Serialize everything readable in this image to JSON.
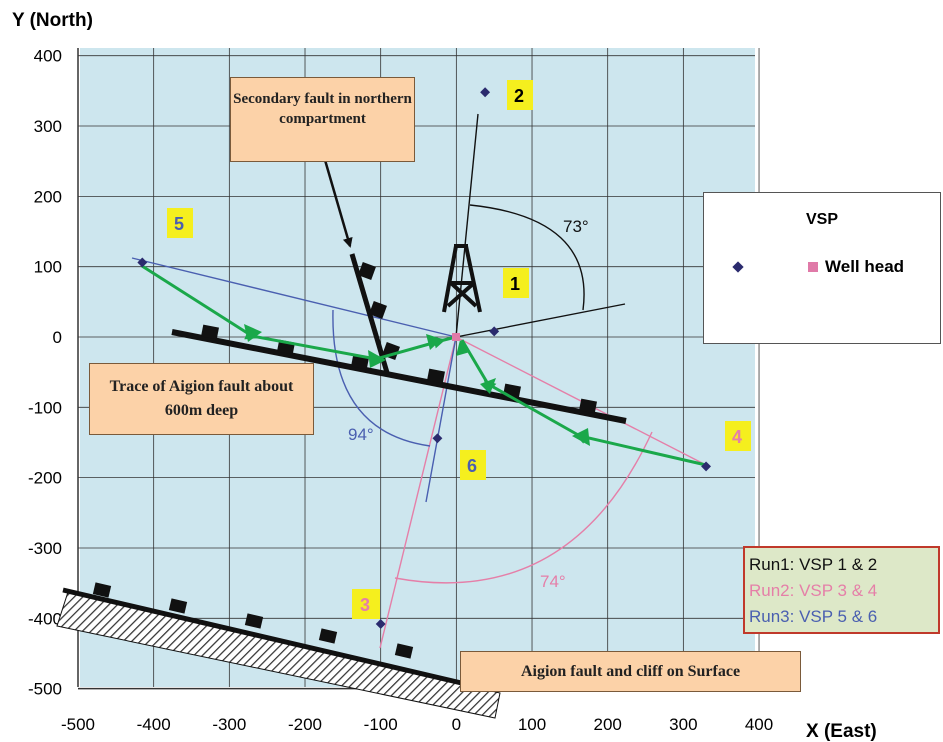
{
  "axes": {
    "y_title": "Y (North)",
    "x_title": "X (East)",
    "x_ticks": [
      -500,
      -400,
      -300,
      -200,
      -100,
      0,
      100,
      200,
      300,
      400
    ],
    "y_ticks": [
      400,
      300,
      200,
      100,
      0,
      -100,
      -200,
      -300,
      -400,
      -500
    ],
    "x_range": [
      -500,
      400
    ],
    "y_range": [
      -500,
      400
    ]
  },
  "vsp_points": [
    {
      "id": "1",
      "x": 50,
      "y": 8
    },
    {
      "id": "2",
      "x": 38,
      "y": 348
    },
    {
      "id": "3",
      "x": -100,
      "y": -408
    },
    {
      "id": "4",
      "x": 330,
      "y": -184
    },
    {
      "id": "5",
      "x": -415,
      "y": 106
    },
    {
      "id": "6",
      "x": -25,
      "y": -144
    }
  ],
  "well_head": {
    "x": 0,
    "y": 0
  },
  "labels": {
    "p1": "1",
    "p2": "2",
    "p3": "3",
    "p4": "4",
    "p5": "5",
    "p6": "6",
    "angle_73": "73°",
    "angle_94": "94°",
    "angle_74": "74°"
  },
  "callouts": {
    "secondary": "Secondary fault in northern compartment",
    "trace": "Trace of Aigion fault about 600m deep",
    "surface": "Aigion fault  and cliff on Surface"
  },
  "legend": {
    "title": "VSP",
    "well_head": "Well head"
  },
  "runs": {
    "run1": "Run1: VSP 1 & 2",
    "run2": "Run2: VSP 3 & 4",
    "run3": "Run3: VSP 5 & 6"
  },
  "colors": {
    "plot_bg": "#cde6ee",
    "run1": "#111111",
    "run2": "#e57fa8",
    "run3": "#4a5fb0",
    "green": "#1aa84a",
    "point": "#2b2b6e",
    "well_head": "#e07aa8"
  }
}
